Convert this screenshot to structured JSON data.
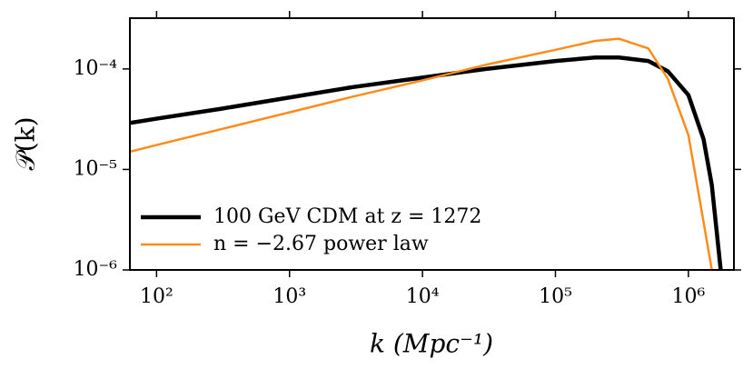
{
  "chart_data": {
    "type": "line",
    "xlabel": "k (Mpc⁻¹)",
    "ylabel": "𝒫(k)",
    "xscale": "log",
    "yscale": "log",
    "x": [
      63,
      100,
      300,
      1000,
      3000,
      10000,
      30000,
      100000,
      200000,
      300000,
      500000,
      700000,
      1000000,
      1300000,
      1500000,
      1750000
    ],
    "series": [
      {
        "name": "100 GeV CDM at z = 1272",
        "color": "#000000",
        "width": 4.5,
        "values": [
          2.9e-05,
          3.2e-05,
          4e-05,
          5.2e-05,
          6.6e-05,
          8.2e-05,
          0.0001,
          0.00012,
          0.00013,
          0.00013,
          0.00012,
          9.5e-05,
          5.5e-05,
          2e-05,
          7e-06,
          1e-06
        ]
      },
      {
        "name": "n = −2.67 power law",
        "color": "#ff8c1a",
        "width": 2.5,
        "values": [
          1.5e-05,
          1.75e-05,
          2.5e-05,
          3.7e-05,
          5.3e-05,
          7.7e-05,
          0.00011,
          0.000155,
          0.00019,
          0.0002,
          0.00016,
          8e-05,
          2.2e-05,
          3e-06,
          1e-06,
          null
        ]
      }
    ],
    "xlim": [
      63,
      2200000
    ],
    "ylim": [
      1e-06,
      0.00032
    ],
    "xticks": [
      {
        "value": 100,
        "label": "10²"
      },
      {
        "value": 1000,
        "label": "10³"
      },
      {
        "value": 10000,
        "label": "10⁴"
      },
      {
        "value": 100000,
        "label": "10⁵"
      },
      {
        "value": 1000000,
        "label": "10⁶"
      }
    ],
    "yticks": [
      {
        "value": 1e-06,
        "label": "10⁻⁶"
      },
      {
        "value": 1e-05,
        "label": "10⁻⁵"
      },
      {
        "value": 0.0001,
        "label": "10⁻⁴"
      }
    ],
    "legend": "lower left",
    "grid": false
  }
}
